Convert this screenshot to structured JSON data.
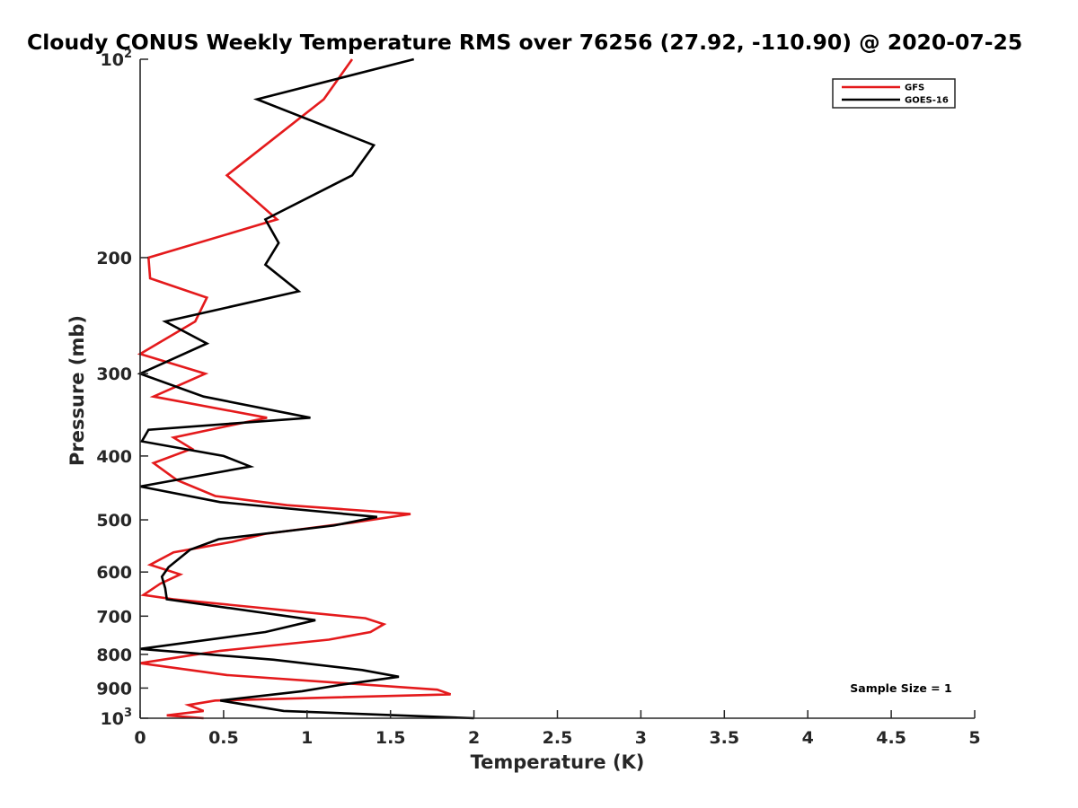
{
  "chart_data": {
    "type": "line",
    "title": "Cloudy CONUS Weekly Temperature RMS over 76256 (27.92, -110.90) @ 2020-07-25",
    "xlabel": "Temperature (K)",
    "ylabel": "Pressure (mb)",
    "xlim": [
      0,
      5
    ],
    "ylim": [
      100,
      1000
    ],
    "yscale": "log",
    "y_reversed": true,
    "grid": false,
    "legend_position": "top-right",
    "annotation": "Sample Size = 1",
    "x_ticks": [
      "0",
      "0.5",
      "1",
      "1.5",
      "2",
      "2.5",
      "3",
      "3.5",
      "4",
      "4.5",
      "5"
    ],
    "y_ticks": [
      {
        "value": 100,
        "base": "10",
        "exp": "2"
      },
      {
        "value": 200,
        "label": "200"
      },
      {
        "value": 300,
        "label": "300"
      },
      {
        "value": 400,
        "label": "400"
      },
      {
        "value": 500,
        "label": "500"
      },
      {
        "value": 600,
        "label": "600"
      },
      {
        "value": 700,
        "label": "700"
      },
      {
        "value": 800,
        "label": "800"
      },
      {
        "value": 900,
        "label": "900"
      },
      {
        "value": 1000,
        "base": "10",
        "exp": "3"
      }
    ],
    "series": [
      {
        "name": "GFS",
        "color": "#e41a1c",
        "points": [
          [
            1.27,
            100
          ],
          [
            1.1,
            115
          ],
          [
            0.75,
            135
          ],
          [
            0.52,
            150
          ],
          [
            0.82,
            175
          ],
          [
            0.05,
            200
          ],
          [
            0.06,
            215
          ],
          [
            0.4,
            230
          ],
          [
            0.33,
            250
          ],
          [
            0.0,
            280
          ],
          [
            0.39,
            300
          ],
          [
            0.08,
            325
          ],
          [
            0.76,
            350
          ],
          [
            0.2,
            375
          ],
          [
            0.31,
            390
          ],
          [
            0.08,
            410
          ],
          [
            0.22,
            435
          ],
          [
            0.45,
            460
          ],
          [
            0.88,
            475
          ],
          [
            1.62,
            490
          ],
          [
            1.27,
            505
          ],
          [
            0.75,
            525
          ],
          [
            0.55,
            540
          ],
          [
            0.2,
            560
          ],
          [
            0.06,
            585
          ],
          [
            0.24,
            605
          ],
          [
            0.12,
            625
          ],
          [
            0.02,
            650
          ],
          [
            0.2,
            660
          ],
          [
            1.35,
            705
          ],
          [
            1.46,
            720
          ],
          [
            1.38,
            740
          ],
          [
            1.13,
            760
          ],
          [
            0.48,
            790
          ],
          [
            0.0,
            825
          ],
          [
            0.52,
            860
          ],
          [
            1.78,
            905
          ],
          [
            1.86,
            920
          ],
          [
            0.45,
            940
          ],
          [
            0.29,
            955
          ],
          [
            0.38,
            975
          ],
          [
            0.16,
            990
          ],
          [
            0.38,
            1000
          ]
        ]
      },
      {
        "name": "GOES-16",
        "color": "#000000",
        "points": [
          [
            1.64,
            100
          ],
          [
            0.7,
            115
          ],
          [
            1.4,
            135
          ],
          [
            1.27,
            150
          ],
          [
            0.75,
            175
          ],
          [
            0.83,
            190
          ],
          [
            0.75,
            205
          ],
          [
            0.95,
            225
          ],
          [
            0.15,
            250
          ],
          [
            0.4,
            270
          ],
          [
            0.0,
            300
          ],
          [
            0.38,
            325
          ],
          [
            1.02,
            350
          ],
          [
            0.05,
            365
          ],
          [
            0.01,
            380
          ],
          [
            0.5,
            400
          ],
          [
            0.66,
            415
          ],
          [
            0.0,
            445
          ],
          [
            0.48,
            470
          ],
          [
            1.42,
            495
          ],
          [
            1.16,
            510
          ],
          [
            0.47,
            535
          ],
          [
            0.3,
            555
          ],
          [
            0.17,
            590
          ],
          [
            0.13,
            610
          ],
          [
            0.15,
            635
          ],
          [
            0.16,
            660
          ],
          [
            1.05,
            710
          ],
          [
            0.75,
            740
          ],
          [
            0.0,
            785
          ],
          [
            0.8,
            815
          ],
          [
            1.33,
            845
          ],
          [
            1.55,
            865
          ],
          [
            1.2,
            890
          ],
          [
            0.97,
            910
          ],
          [
            0.48,
            940
          ],
          [
            0.86,
            975
          ],
          [
            2.0,
            1000
          ]
        ]
      }
    ]
  }
}
